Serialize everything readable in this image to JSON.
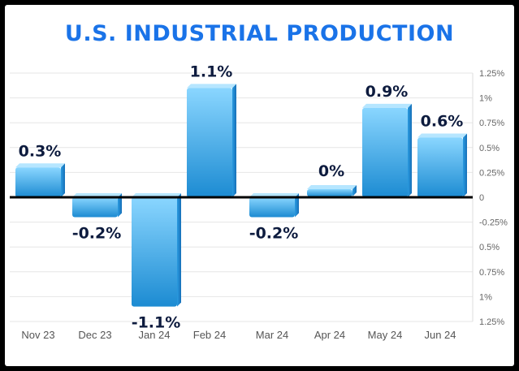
{
  "chart_data": {
    "type": "bar",
    "title": "U.S. INDUSTRIAL PRODUCTION",
    "categories": [
      "Nov 23",
      "Dec 23",
      "Jan 24",
      "Feb 24",
      "Mar 24",
      "Apr 24",
      "May 24",
      "Jun 24"
    ],
    "values": [
      0.3,
      -0.2,
      -1.1,
      1.1,
      -0.2,
      0,
      0.9,
      0.6
    ],
    "data_labels": [
      "0.3%",
      "-0.2%",
      "-1.1%",
      "1.1%",
      "-0.2%",
      "0%",
      "0.9%",
      "0.6%"
    ],
    "y_ticks": [
      "1.25%",
      "1%",
      "0.75%",
      "0.5%",
      "0.25%",
      "0",
      "-0.25%",
      "0.5%",
      "0.75%",
      "1%",
      "1.25%"
    ],
    "ylim": [
      -1.25,
      1.25
    ],
    "grid": true,
    "colors": {
      "bar_top": "#7fd0fb",
      "bar_bottom": "#1d8fd6",
      "title": "#1a73e8"
    }
  }
}
